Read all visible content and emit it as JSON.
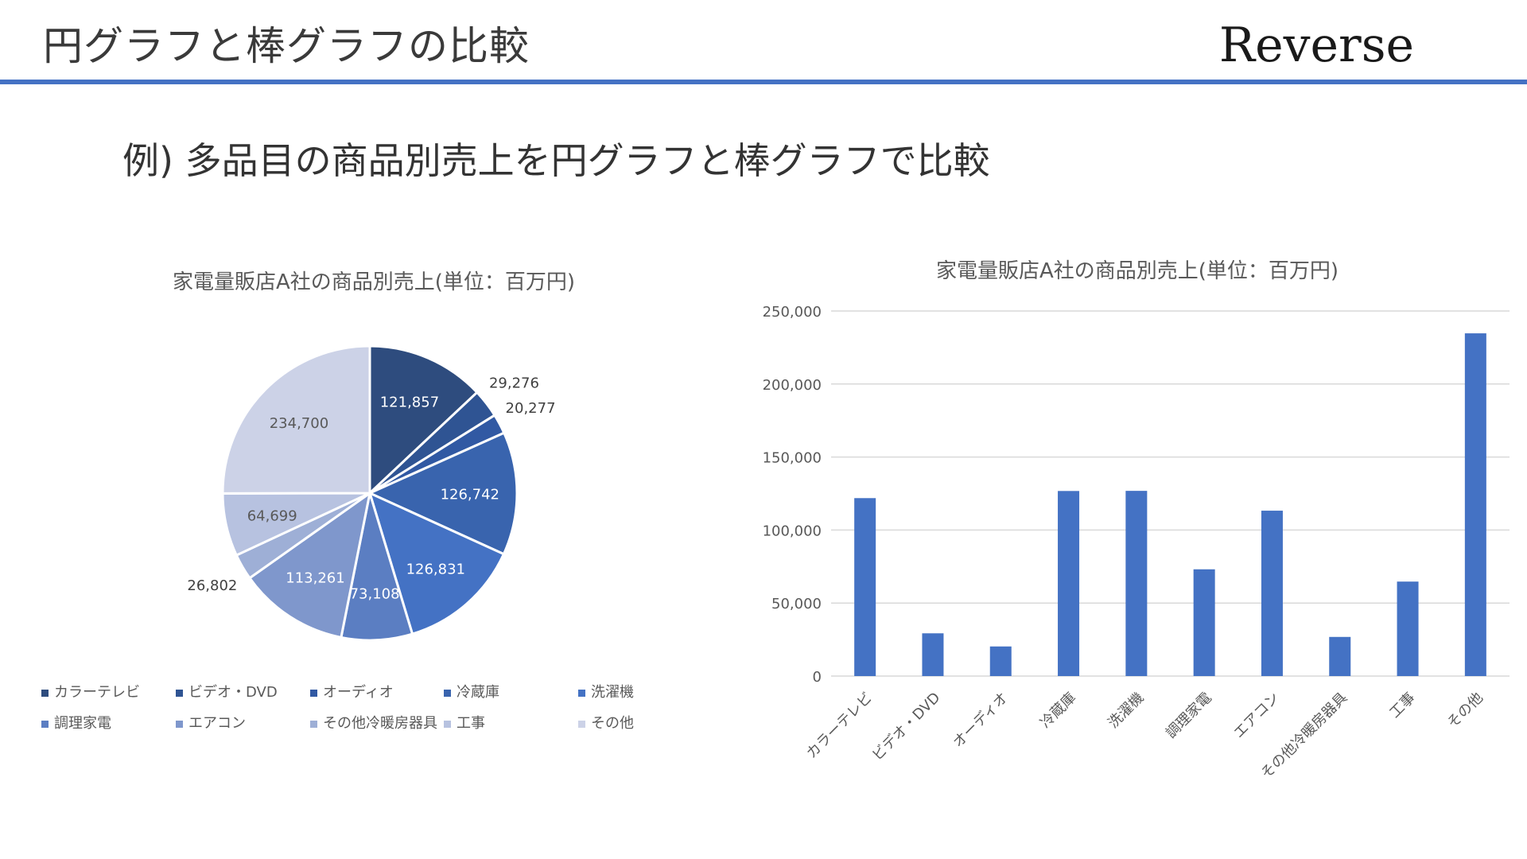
{
  "header": {
    "title": "円グラフと棒グラフの比較",
    "brand": "Reverse",
    "accent_color": "#4472c4"
  },
  "subtitle": "例) 多品目の商品別売上を円グラフと棒グラフで比較",
  "chart_data": [
    {
      "type": "pie",
      "title": "家電量販店A社の商品別売上(単位：百万円)",
      "categories": [
        "カラーテレビ",
        "ビデオ・DVD",
        "オーディオ",
        "冷蔵庫",
        "洗濯機",
        "調理家電",
        "エアコン",
        "その他冷暖房器具",
        "工事",
        "その他"
      ],
      "values": [
        121857,
        29276,
        20277,
        126742,
        126831,
        73108,
        113261,
        26802,
        64699,
        234700
      ],
      "value_labels": [
        "121,857",
        "29,276",
        "20,277",
        "126,742",
        "126,831",
        "73,108",
        "113,261",
        "26,802",
        "64,699",
        "234,700"
      ],
      "colors": [
        "#2e4c7e",
        "#2f5493",
        "#3159a3",
        "#3964ae",
        "#4472c4",
        "#5b7ec2",
        "#7f97cc",
        "#9eafd6",
        "#b7c2e0",
        "#ccd2e7"
      ],
      "legend_position": "bottom"
    },
    {
      "type": "bar",
      "title": "家電量販店A社の商品別売上(単位：百万円)",
      "categories": [
        "カラーテレビ",
        "ビデオ・DVD",
        "オーディオ",
        "冷蔵庫",
        "洗濯機",
        "調理家電",
        "エアコン",
        "その他冷暖房器具",
        "工事",
        "その他"
      ],
      "values": [
        121857,
        29276,
        20277,
        126742,
        126831,
        73108,
        113261,
        26802,
        64699,
        234700
      ],
      "ylim": [
        0,
        250000
      ],
      "yticks": [
        "0",
        "50,000",
        "100,000",
        "150,000",
        "200,000",
        "250,000"
      ],
      "bar_color": "#4472c4",
      "grid": true
    }
  ]
}
